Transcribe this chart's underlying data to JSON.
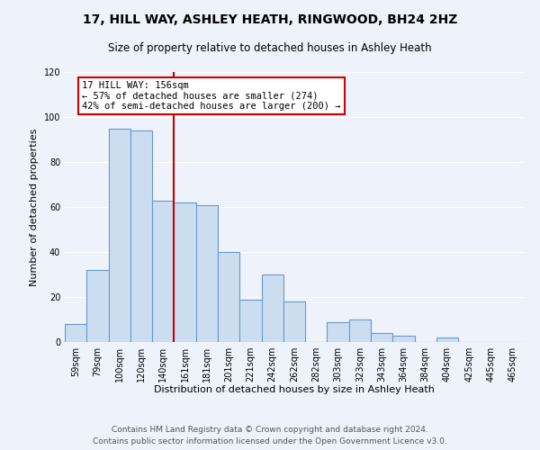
{
  "title": "17, HILL WAY, ASHLEY HEATH, RINGWOOD, BH24 2HZ",
  "subtitle": "Size of property relative to detached houses in Ashley Heath",
  "xlabel": "Distribution of detached houses by size in Ashley Heath",
  "ylabel": "Number of detached properties",
  "bar_labels": [
    "59sqm",
    "79sqm",
    "100sqm",
    "120sqm",
    "140sqm",
    "161sqm",
    "181sqm",
    "201sqm",
    "221sqm",
    "242sqm",
    "262sqm",
    "282sqm",
    "303sqm",
    "323sqm",
    "343sqm",
    "364sqm",
    "384sqm",
    "404sqm",
    "425sqm",
    "445sqm",
    "465sqm"
  ],
  "bar_values": [
    8,
    32,
    95,
    94,
    63,
    62,
    61,
    40,
    19,
    30,
    18,
    0,
    9,
    10,
    4,
    3,
    0,
    2,
    0,
    0,
    0
  ],
  "bar_color": "#cdddf0",
  "bar_edge_color": "#6699cc",
  "vline_x_index": 5,
  "vline_color": "#cc0000",
  "annotation_title": "17 HILL WAY: 156sqm",
  "annotation_line1": "← 57% of detached houses are smaller (274)",
  "annotation_line2": "42% of semi-detached houses are larger (200) →",
  "annotation_box_color": "#ffffff",
  "annotation_box_edge": "#cc0000",
  "ylim": [
    0,
    120
  ],
  "yticks": [
    0,
    20,
    40,
    60,
    80,
    100,
    120
  ],
  "footer1": "Contains HM Land Registry data © Crown copyright and database right 2024.",
  "footer2": "Contains public sector information licensed under the Open Government Licence v3.0.",
  "bg_color": "#edf2fb",
  "plot_bg_color": "#edf2fb",
  "title_fontsize": 10,
  "subtitle_fontsize": 8.5,
  "axis_label_fontsize": 8,
  "tick_fontsize": 7,
  "footer_fontsize": 6.5,
  "annotation_fontsize": 7.5
}
